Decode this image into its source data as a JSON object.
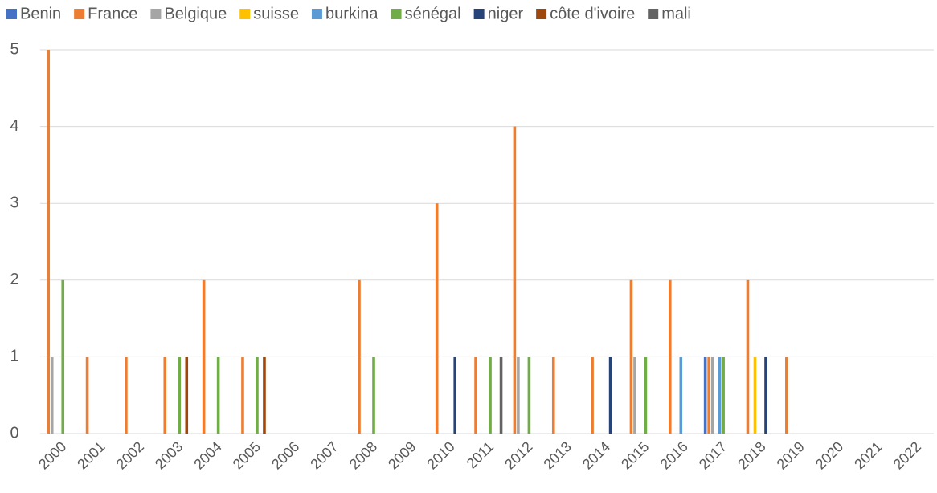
{
  "chart_data": {
    "type": "bar",
    "categories": [
      "2000",
      "2001",
      "2002",
      "2003",
      "2004",
      "2005",
      "2006",
      "2007",
      "2008",
      "2009",
      "2010",
      "2011",
      "2012",
      "2013",
      "2014",
      "2015",
      "2016",
      "2017",
      "2018",
      "2019",
      "2020",
      "2021",
      "2022"
    ],
    "series": [
      {
        "name": "Benin",
        "color": "#4472c4",
        "values": [
          0,
          0,
          0,
          0,
          0,
          0,
          0,
          0,
          0,
          0,
          0,
          0,
          0,
          0,
          0,
          0,
          0,
          1,
          0,
          0,
          0,
          0,
          0
        ]
      },
      {
        "name": "France",
        "color": "#ed7d31",
        "values": [
          5,
          1,
          1,
          1,
          2,
          1,
          0,
          0,
          2,
          0,
          3,
          1,
          4,
          1,
          1,
          2,
          2,
          1,
          2,
          1,
          0,
          0,
          0
        ]
      },
      {
        "name": "Belgique",
        "color": "#a5a5a5",
        "values": [
          1,
          0,
          0,
          0,
          0,
          0,
          0,
          0,
          0,
          0,
          0,
          0,
          1,
          0,
          0,
          1,
          0,
          1,
          0,
          0,
          0,
          0,
          0
        ]
      },
      {
        "name": "suisse",
        "color": "#ffc000",
        "values": [
          0,
          0,
          0,
          0,
          0,
          0,
          0,
          0,
          0,
          0,
          0,
          0,
          0,
          0,
          0,
          0,
          0,
          0,
          1,
          0,
          0,
          0,
          0
        ]
      },
      {
        "name": "burkina",
        "color": "#5b9bd5",
        "values": [
          0,
          0,
          0,
          0,
          0,
          0,
          0,
          0,
          0,
          0,
          0,
          0,
          0,
          0,
          0,
          0,
          1,
          1,
          0,
          0,
          0,
          0,
          0
        ]
      },
      {
        "name": "sénégal",
        "color": "#70ad47",
        "values": [
          2,
          0,
          0,
          1,
          1,
          1,
          0,
          0,
          1,
          0,
          0,
          1,
          1,
          0,
          0,
          1,
          0,
          1,
          0,
          0,
          0,
          0,
          0
        ]
      },
      {
        "name": "niger",
        "color": "#264478",
        "values": [
          0,
          0,
          0,
          0,
          0,
          0,
          0,
          0,
          0,
          0,
          1,
          0,
          0,
          0,
          1,
          0,
          0,
          0,
          1,
          0,
          0,
          0,
          0
        ]
      },
      {
        "name": "côte d'ivoire",
        "color": "#9e480e",
        "values": [
          0,
          0,
          0,
          1,
          0,
          1,
          0,
          0,
          0,
          0,
          0,
          0,
          0,
          0,
          0,
          0,
          0,
          0,
          0,
          0,
          0,
          0,
          0
        ]
      },
      {
        "name": "mali",
        "color": "#636363",
        "values": [
          0,
          0,
          0,
          0,
          0,
          0,
          0,
          0,
          0,
          0,
          0,
          1,
          0,
          0,
          0,
          0,
          0,
          0,
          0,
          0,
          0,
          0,
          0
        ]
      }
    ],
    "ylim": [
      0,
      5
    ],
    "yticks": [
      0,
      1,
      2,
      3,
      4,
      5
    ],
    "grid": true,
    "legend": "top"
  }
}
